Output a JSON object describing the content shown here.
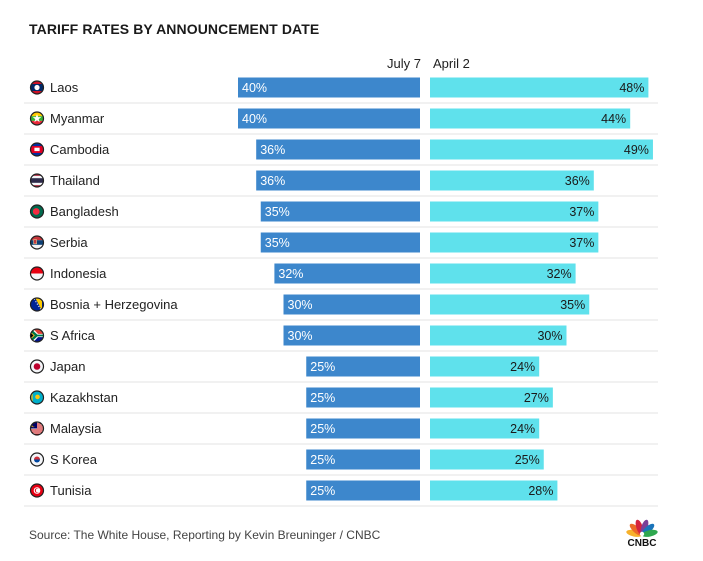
{
  "title": "TARIFF RATES BY ANNOUNCEMENT DATE",
  "source": "Source: The White House, Reporting by Kevin Breuninger / CNBC",
  "logo": {
    "icon": "cnbc-peacock-icon",
    "text": "CNBC"
  },
  "colors": {
    "july": "#3d87cc",
    "april": "#5fe1ec",
    "grid": "#e3e3e3",
    "text": "#222222",
    "peacock": [
      "#f7b12b",
      "#ec6a27",
      "#d5233e",
      "#7b3f97",
      "#1a74ba",
      "#2fa84f"
    ]
  },
  "chart_data": {
    "type": "bar",
    "title": "TARIFF RATES BY ANNOUNCEMENT DATE",
    "orientation": "horizontal, mirrored",
    "value_unit": "%",
    "xlim": [
      0,
      50
    ],
    "legend_placement": "top",
    "grid": "horizontal row separators",
    "series": [
      {
        "name": "July 7",
        "direction": "left",
        "values": [
          40,
          40,
          36,
          36,
          35,
          35,
          32,
          30,
          30,
          25,
          25,
          25,
          25,
          25
        ]
      },
      {
        "name": "April 2",
        "direction": "right",
        "values": [
          48,
          44,
          49,
          36,
          37,
          37,
          32,
          35,
          30,
          24,
          27,
          24,
          25,
          28
        ]
      }
    ],
    "categories": [
      {
        "name": "Laos",
        "flag": "laos-flag-icon"
      },
      {
        "name": "Myanmar",
        "flag": "myanmar-flag-icon"
      },
      {
        "name": "Cambodia",
        "flag": "cambodia-flag-icon"
      },
      {
        "name": "Thailand",
        "flag": "thailand-flag-icon"
      },
      {
        "name": "Bangladesh",
        "flag": "bangladesh-flag-icon"
      },
      {
        "name": "Serbia",
        "flag": "serbia-flag-icon"
      },
      {
        "name": "Indonesia",
        "flag": "indonesia-flag-icon"
      },
      {
        "name": "Bosnia + Herzegovina",
        "flag": "bosnia-flag-icon"
      },
      {
        "name": "S Africa",
        "flag": "south-africa-flag-icon"
      },
      {
        "name": "Japan",
        "flag": "japan-flag-icon"
      },
      {
        "name": "Kazakhstan",
        "flag": "kazakhstan-flag-icon"
      },
      {
        "name": "Malaysia",
        "flag": "malaysia-flag-icon"
      },
      {
        "name": "S Korea",
        "flag": "south-korea-flag-icon"
      },
      {
        "name": "Tunisia",
        "flag": "tunisia-flag-icon"
      }
    ]
  }
}
